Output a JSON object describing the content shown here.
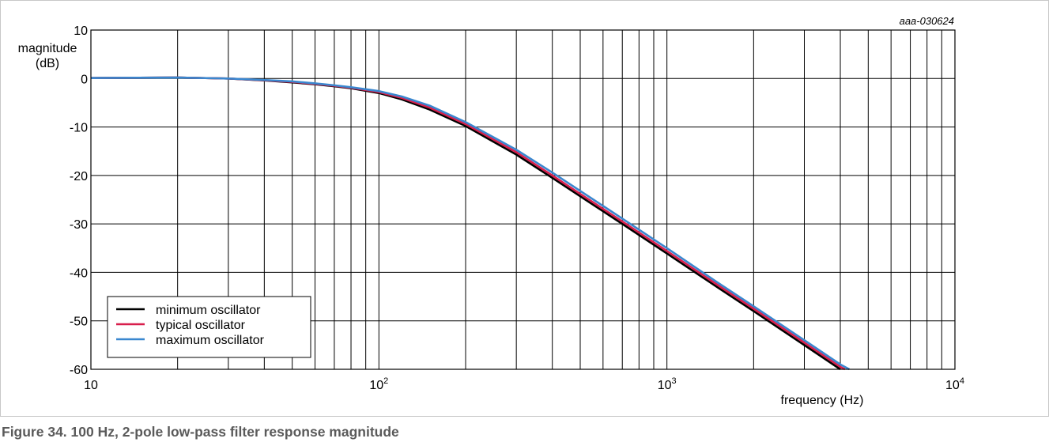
{
  "figure_caption": "Figure 34.  100 Hz, 2-pole low-pass filter response magnitude",
  "figure_code": "aaa-030624",
  "colors": {
    "minimum": "#000000",
    "typical": "#d81e4c",
    "maximum": "#3a87cf",
    "grid": "#000000",
    "caption": "#5a5a5a"
  },
  "chart_data": {
    "type": "line",
    "xscale": "log",
    "xlim": [
      10,
      10000
    ],
    "ylim": [
      -60,
      10
    ],
    "grid": true,
    "legend_position": "bottom-left",
    "xlabel": "frequency (Hz)",
    "ylabel_line1": "magnitude",
    "ylabel_line2": "(dB)",
    "x_tick_labels": [
      {
        "value": 10,
        "base": "10",
        "exp": ""
      },
      {
        "value": 100,
        "base": "10",
        "exp": "2"
      },
      {
        "value": 1000,
        "base": "10",
        "exp": "3"
      },
      {
        "value": 10000,
        "base": "10",
        "exp": "4"
      }
    ],
    "y_ticks": [
      10,
      0,
      -10,
      -20,
      -30,
      -40,
      -50,
      -60
    ],
    "y_tick_labels": [
      "10",
      "0",
      "-10",
      "-20",
      "-30",
      "-40",
      "-50",
      "-60"
    ],
    "series": [
      {
        "name": "minimum oscillator",
        "color": "#000000",
        "x": [
          10,
          20,
          30,
          40,
          50,
          60,
          70,
          80,
          100,
          120,
          150,
          200,
          300,
          400,
          500,
          700,
          1000,
          1500,
          2000,
          3000,
          4000
        ],
        "y": [
          0.1,
          0.2,
          0.0,
          -0.4,
          -0.8,
          -1.2,
          -1.6,
          -2.0,
          -3.0,
          -4.3,
          -6.4,
          -9.8,
          -15.7,
          -20.5,
          -24.3,
          -30.0,
          -36.1,
          -43.1,
          -48.0,
          -55.0,
          -60.0
        ]
      },
      {
        "name": "typical oscillator",
        "color": "#d81e4c",
        "x": [
          10,
          20,
          30,
          40,
          50,
          60,
          70,
          80,
          100,
          120,
          150,
          200,
          300,
          400,
          500,
          700,
          1000,
          1500,
          2000,
          3000,
          4000,
          4150
        ],
        "y": [
          0.1,
          0.2,
          0.0,
          -0.35,
          -0.7,
          -1.1,
          -1.5,
          -1.9,
          -2.8,
          -4.0,
          -6.0,
          -9.4,
          -15.2,
          -20.0,
          -23.8,
          -29.5,
          -35.6,
          -42.6,
          -47.5,
          -54.5,
          -59.5,
          -60.0
        ]
      },
      {
        "name": "maximum oscillator",
        "color": "#3a87cf",
        "x": [
          10,
          20,
          30,
          40,
          50,
          60,
          70,
          80,
          100,
          120,
          150,
          200,
          300,
          400,
          500,
          700,
          1000,
          1500,
          2000,
          3000,
          4000,
          4300
        ],
        "y": [
          0.1,
          0.2,
          0.0,
          -0.3,
          -0.6,
          -1.0,
          -1.4,
          -1.8,
          -2.6,
          -3.7,
          -5.6,
          -9.0,
          -14.7,
          -19.4,
          -23.2,
          -28.9,
          -35.0,
          -42.1,
          -47.0,
          -54.0,
          -59.0,
          -60.0
        ]
      }
    ]
  }
}
